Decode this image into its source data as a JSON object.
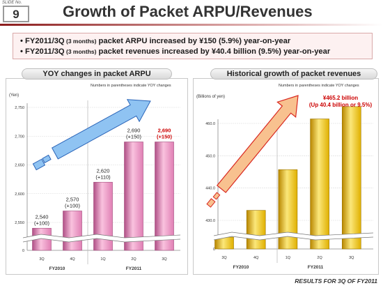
{
  "slide": {
    "label": "SLIDE No.",
    "number": "9"
  },
  "title": "Growth of Packet ARPU/Revenues",
  "summary": {
    "bullet1": {
      "bullet": "•",
      "pre": "FY2011/3Q",
      "small": " (3 months)",
      "post": " packet ARPU increased by ¥150 (5.9%) year-on-year"
    },
    "bullet2": {
      "bullet": "•",
      "pre": "FY2011/3Q",
      "small": " (3 months)",
      "post": " packet revenues increased by ¥40.4 billion (9.5%) year-on-year"
    }
  },
  "left_panel": {
    "header": "YOY changes in packet ARPU",
    "note": "Numbers in parentheses indicate YOY changes",
    "unit": "(Yen)"
  },
  "right_panel": {
    "header": "Historical growth of packet revenues",
    "note": "Numbers in parentheses indicate YOY changes",
    "unit": "(Billions of yen)"
  },
  "footer": "RESULTS FOR 3Q OF FY2011",
  "colors": {
    "arpu_bar": "#e07fb4",
    "revenue_bar": "#e0b000",
    "highlight_text": "#cc0000",
    "title_rule": "#8b1b1b"
  },
  "chart_data": [
    {
      "type": "bar",
      "title": "YOY changes in packet ARPU",
      "ylabel": "(Yen)",
      "categories": [
        "3Q",
        "4Q",
        "1Q",
        "2Q",
        "3Q"
      ],
      "fiscal_years": [
        "FY2010",
        "FY2011"
      ],
      "values": [
        2540,
        2570,
        2620,
        2690,
        2690
      ],
      "value_labels": [
        "2,540",
        "2,570",
        "2,620",
        "2,690",
        "2,690"
      ],
      "change_labels": [
        "(+100)",
        "(+100)",
        "(+110)",
        "(+150)",
        "(+150)"
      ],
      "highlighted_index": 4,
      "yticks": [
        0,
        2550,
        2600,
        2650,
        2700,
        2750
      ],
      "ytick_labels": [
        "0",
        "2,550",
        "2,600",
        "2,650",
        "2,700",
        "2,750"
      ],
      "axis_break": true,
      "grid": true
    },
    {
      "type": "bar",
      "title": "Historical growth of packet revenues",
      "ylabel": "(Billions of yen)",
      "categories": [
        "3Q",
        "4Q",
        "1Q",
        "2Q",
        "3Q"
      ],
      "fiscal_years": [
        "FY2010",
        "FY2011"
      ],
      "values": [
        424.8,
        433.1,
        445.7,
        461.4,
        465.2
      ],
      "annotation": [
        "¥465.2 billion",
        "(Up 40.4 billion or 9.5%)"
      ],
      "yticks": [
        0,
        430.0,
        440.0,
        450.0,
        460.0
      ],
      "ytick_labels": [
        "0",
        "430.0",
        "440.0",
        "450.0",
        "460.0"
      ],
      "axis_break": true,
      "grid": true
    }
  ]
}
